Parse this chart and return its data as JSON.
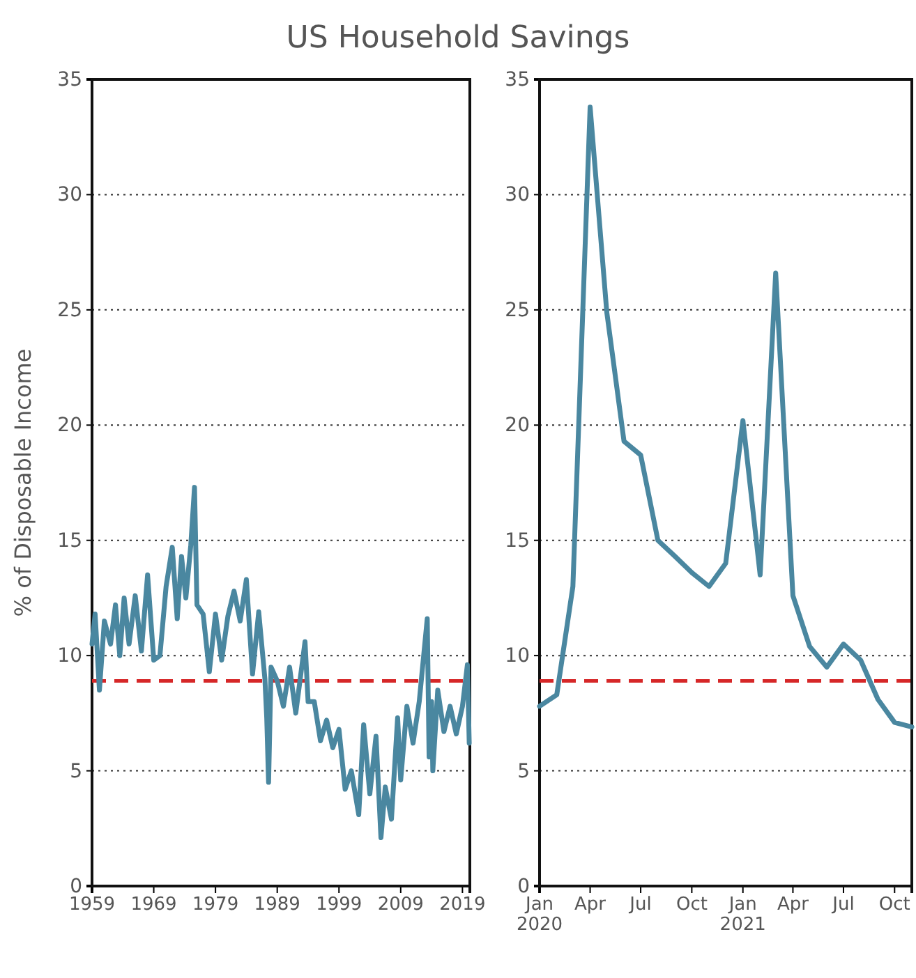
{
  "chart_data": [
    {
      "type": "line",
      "title": "US Household Savings",
      "ylabel": "% of Disposable Income",
      "grid": "y",
      "xlim": [
        1959,
        2020.2
      ],
      "xticks": [
        1959,
        1969,
        1979,
        1989,
        1999,
        2009,
        2019
      ],
      "ylim": [
        0,
        35
      ],
      "yticks": [
        0,
        5,
        10,
        15,
        20,
        25,
        30,
        35
      ],
      "ref_lines": [
        {
          "axis": "y",
          "value": 8.9,
          "color": "#d62728",
          "line_style": "dashed"
        }
      ],
      "series": [
        {
          "color": "#4a87a0",
          "x": [
            1959,
            1959.5,
            1960.2,
            1961,
            1962,
            1962.8,
            1963.5,
            1964.2,
            1965,
            1966,
            1967,
            1968,
            1969,
            1970,
            1971,
            1972,
            1972.8,
            1973.5,
            1974.2,
            1975,
            1975.6,
            1976,
            1977,
            1978,
            1979,
            1980,
            1981,
            1982,
            1983,
            1984,
            1985,
            1986,
            1987,
            1987.3,
            1987.6,
            1988,
            1989,
            1990,
            1991,
            1992,
            1993.5,
            1994,
            1995,
            1996,
            1997,
            1998,
            1999,
            2000,
            2001,
            2002.2,
            2003,
            2004,
            2005,
            2005.8,
            2006.5,
            2007.5,
            2008.5,
            2009,
            2010,
            2011,
            2012,
            2013.3,
            2013.6,
            2014,
            2014.2,
            2015,
            2016,
            2017,
            2018,
            2019,
            2019.8,
            2020.1
          ],
          "values": [
            10.5,
            11.8,
            8.5,
            11.5,
            10.5,
            12.2,
            10.0,
            12.5,
            10.5,
            12.6,
            10.2,
            13.5,
            9.8,
            10.0,
            13.0,
            14.7,
            11.6,
            14.3,
            12.5,
            14.8,
            17.3,
            12.2,
            11.8,
            9.3,
            11.8,
            9.8,
            11.7,
            12.8,
            11.5,
            13.3,
            9.2,
            11.9,
            9.0,
            7.3,
            4.5,
            9.5,
            8.9,
            7.8,
            9.5,
            7.5,
            10.6,
            8.0,
            8.0,
            6.3,
            7.2,
            6.0,
            6.8,
            4.2,
            5.0,
            3.1,
            7.0,
            4.0,
            6.5,
            2.1,
            4.3,
            2.9,
            7.3,
            4.6,
            7.8,
            6.2,
            8.0,
            11.6,
            5.6,
            8.0,
            5.0,
            8.5,
            6.7,
            7.8,
            6.6,
            7.8,
            9.6,
            6.2
          ]
        }
      ]
    },
    {
      "type": "line",
      "grid": "y",
      "xlim": [
        "2020-01",
        "2021-11"
      ],
      "xticks": [
        {
          "value": "2020-01",
          "label": "Jan\n2020"
        },
        {
          "value": "2020-04",
          "label": "Apr"
        },
        {
          "value": "2020-07",
          "label": "Jul"
        },
        {
          "value": "2020-10",
          "label": "Oct"
        },
        {
          "value": "2021-01",
          "label": "Jan\n2021"
        },
        {
          "value": "2021-04",
          "label": "Apr"
        },
        {
          "value": "2021-07",
          "label": "Jul"
        },
        {
          "value": "2021-10",
          "label": "Oct"
        }
      ],
      "ylim": [
        0,
        35
      ],
      "yticks": [
        0,
        5,
        10,
        15,
        20,
        25,
        30,
        35
      ],
      "ref_lines": [
        {
          "axis": "y",
          "value": 8.9,
          "color": "#d62728",
          "line_style": "dashed"
        }
      ],
      "x": [
        "2020-01",
        "2020-02",
        "2020-03",
        "2020-04",
        "2020-05",
        "2020-06",
        "2020-07",
        "2020-08",
        "2020-09",
        "2020-10",
        "2020-11",
        "2020-12",
        "2021-01",
        "2021-02",
        "2021-03",
        "2021-04",
        "2021-05",
        "2021-06",
        "2021-07",
        "2021-08",
        "2021-09",
        "2021-10",
        "2021-11"
      ],
      "series": [
        {
          "color": "#4a87a0",
          "values": [
            7.8,
            8.3,
            13.0,
            33.8,
            24.9,
            19.3,
            18.7,
            15.0,
            14.3,
            13.6,
            13.0,
            14.0,
            20.2,
            13.5,
            26.6,
            12.6,
            10.4,
            9.5,
            10.5,
            9.8,
            8.1,
            7.1,
            6.9
          ]
        }
      ]
    }
  ]
}
